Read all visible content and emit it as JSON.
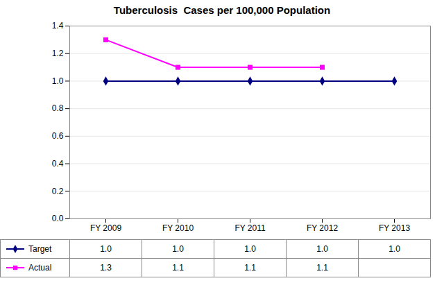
{
  "chart_data": {
    "type": "line",
    "title": "Tuberculosis  Cases per 100,000 Population",
    "categories": [
      "FY 2009",
      "FY 2010",
      "FY 2011",
      "FY 2012",
      "FY 2013"
    ],
    "series": [
      {
        "name": "Target",
        "color": "#000080",
        "marker": "diamond",
        "values": [
          1.0,
          1.0,
          1.0,
          1.0,
          1.0
        ],
        "value_labels": [
          "1.0",
          "1.0",
          "1.0",
          "1.0",
          "1.0"
        ]
      },
      {
        "name": "Actual",
        "color": "#FF00FF",
        "marker": "square",
        "values": [
          1.3,
          1.1,
          1.1,
          1.1,
          null
        ],
        "value_labels": [
          "1.3",
          "1.1",
          "1.1",
          "1.1",
          null
        ]
      }
    ],
    "ylim": [
      0.0,
      1.4
    ],
    "yticks": [
      {
        "value": 0.0,
        "label": "0.0"
      },
      0.2,
      0.4,
      0.6,
      0.8,
      {
        "value": 1.0,
        "label": "1.0"
      },
      1.2,
      1.4
    ],
    "grid": true
  }
}
